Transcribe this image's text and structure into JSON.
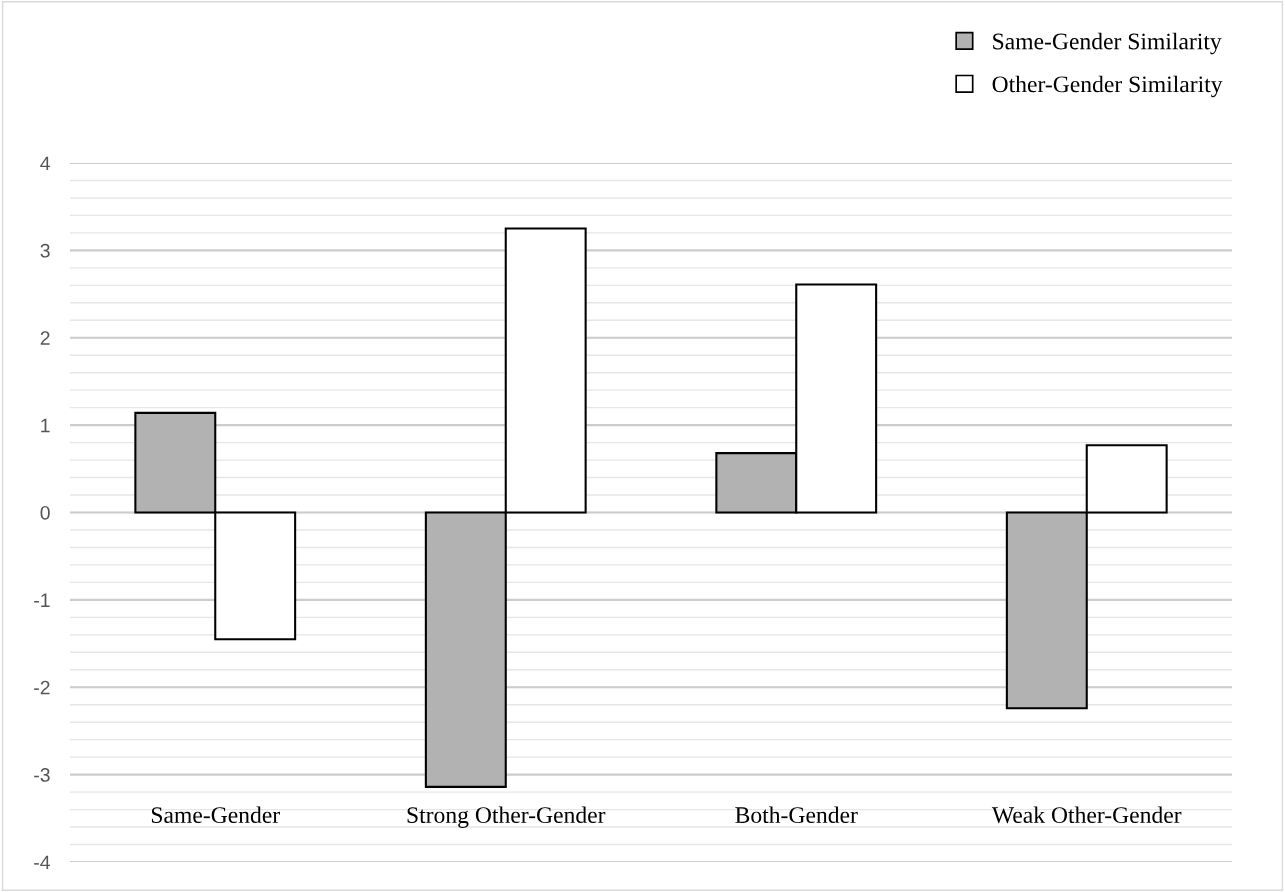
{
  "chart_data": {
    "type": "bar",
    "categories": [
      "Same-Gender",
      "Strong Other-Gender",
      "Both-Gender",
      "Weak Other-Gender"
    ],
    "series": [
      {
        "name": "Same-Gender Similarity",
        "color": "#b2b2b2",
        "values": [
          1.14,
          -3.14,
          0.68,
          -2.24
        ]
      },
      {
        "name": "Other-Gender Similarity",
        "color": "#ffffff",
        "values": [
          -1.45,
          3.25,
          2.61,
          0.77
        ]
      }
    ],
    "ylim": [
      -4,
      4
    ],
    "yticks": [
      -4,
      -3,
      -2,
      -1,
      0,
      1,
      2,
      3,
      4
    ],
    "grid": "y",
    "legend": "top right"
  }
}
